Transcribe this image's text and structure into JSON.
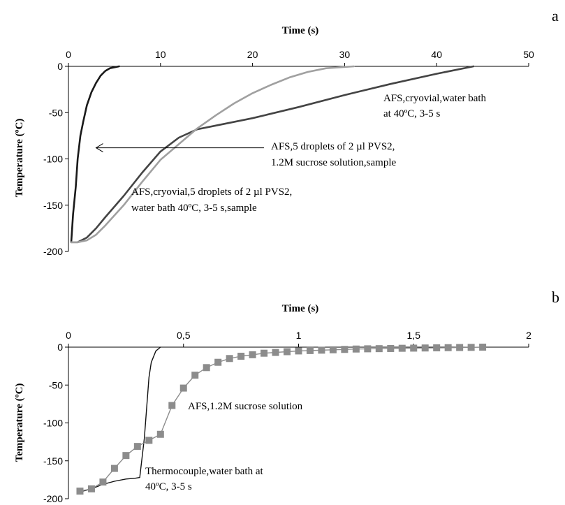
{
  "chart_data": [
    {
      "panel": "a",
      "type": "line",
      "xlabel": "Time (s)",
      "ylabel": "Temperature  (ºC)",
      "xlim": [
        0,
        50
      ],
      "ylim": [
        -200,
        0
      ],
      "x_ticks": [
        0,
        10,
        20,
        30,
        40,
        50
      ],
      "x_tick_labels": [
        "0",
        "10",
        "20",
        "30",
        "40",
        "50"
      ],
      "y_ticks": [
        0,
        -50,
        -100,
        -150,
        -200
      ],
      "y_tick_labels": [
        "0",
        "-50",
        "-100",
        "-150",
        "-200"
      ],
      "x_axis_position": "top",
      "grid": false,
      "series": [
        {
          "color": "#1a1a1a",
          "x": [
            0.3,
            0.5,
            0.8,
            1.0,
            1.3,
            1.6,
            2.0,
            2.5,
            3.0,
            3.5,
            4.0,
            4.5,
            5.0,
            5.5
          ],
          "y": [
            -190,
            -160,
            -130,
            -100,
            -75,
            -60,
            -42,
            -28,
            -18,
            -10,
            -5,
            -2,
            -1,
            0
          ]
        },
        {
          "color": "#444444",
          "x": [
            0.3,
            1,
            2,
            3,
            4,
            6,
            8,
            10,
            12,
            14,
            16,
            20,
            25,
            30,
            35,
            40,
            44
          ],
          "y": [
            -190,
            -190,
            -185,
            -175,
            -163,
            -140,
            -115,
            -92,
            -77,
            -68,
            -64,
            -56,
            -44,
            -31,
            -19,
            -8,
            0
          ]
        },
        {
          "color": "#a0a0a0",
          "x": [
            0.3,
            1,
            2,
            3,
            4,
            6,
            8,
            10,
            12,
            14,
            16,
            18,
            20,
            22,
            24,
            26,
            28,
            31
          ],
          "y": [
            -190,
            -190,
            -188,
            -182,
            -172,
            -150,
            -125,
            -101,
            -84,
            -67,
            -53,
            -40,
            -29,
            -20,
            -12,
            -6,
            -2,
            0
          ]
        }
      ],
      "annotations": [
        {
          "lines": [
            "AFS,cryovial,water bath",
            "at 40ºC, 3-5 s"
          ]
        },
        {
          "lines": [
            "AFS,5 droplets of 2 µl PVS2,",
            "1.2M sucrose solution,sample"
          ]
        },
        {
          "lines": [
            "AFS,cryovial,5 droplets of 2 µl PVS2,",
            "water bath 40ºC, 3-5 s,sample"
          ]
        }
      ],
      "arrow": {
        "from": [
          22,
          -88
        ],
        "to": [
          3,
          -88
        ]
      }
    },
    {
      "panel": "b",
      "type": "line",
      "xlabel": "Time (s)",
      "ylabel": "Temperature  (ºC)",
      "xlim": [
        0,
        2
      ],
      "ylim": [
        -200,
        0
      ],
      "x_ticks": [
        0,
        0.5,
        1,
        1.5,
        2
      ],
      "x_tick_labels": [
        "0",
        "0,5",
        "1",
        "1,5",
        "2"
      ],
      "y_ticks": [
        0,
        -50,
        -100,
        -150,
        -200
      ],
      "y_tick_labels": [
        "0",
        "-50",
        "-100",
        "-150",
        "-200"
      ],
      "x_axis_position": "top",
      "grid": false,
      "series": [
        {
          "color": "#111111",
          "marker": "none",
          "x": [
            0.05,
            0.1,
            0.15,
            0.2,
            0.25,
            0.29,
            0.31,
            0.33,
            0.34,
            0.35,
            0.36,
            0.38,
            0.4
          ],
          "y": [
            -191,
            -187,
            -181,
            -177,
            -174,
            -173,
            -172,
            -120,
            -80,
            -40,
            -20,
            -5,
            0
          ]
        },
        {
          "color": "#8c8c8c",
          "marker": "square",
          "x": [
            0.05,
            0.1,
            0.15,
            0.2,
            0.25,
            0.3,
            0.35,
            0.4,
            0.45,
            0.5,
            0.55,
            0.6,
            0.65,
            0.7,
            0.75,
            0.8,
            0.85,
            0.9,
            0.95,
            1.0,
            1.05,
            1.1,
            1.15,
            1.2,
            1.25,
            1.3,
            1.35,
            1.4,
            1.45,
            1.5,
            1.55,
            1.6,
            1.65,
            1.7,
            1.75,
            1.8
          ],
          "y": [
            -190,
            -187,
            -178,
            -160,
            -143,
            -131,
            -123,
            -115,
            -77,
            -54,
            -37,
            -27,
            -20,
            -15,
            -12,
            -10,
            -8,
            -7,
            -6,
            -5,
            -4.5,
            -4,
            -3.5,
            -3,
            -2.5,
            -2.2,
            -2,
            -1.8,
            -1.5,
            -1.3,
            -1.1,
            -0.9,
            -0.7,
            -0.5,
            -0.3,
            0
          ]
        }
      ],
      "annotations": [
        {
          "lines": [
            "AFS,1.2M sucrose solution"
          ]
        },
        {
          "lines": [
            "Thermocouple,water bath at",
            "40ºC, 3-5 s"
          ]
        }
      ]
    }
  ],
  "labels": {
    "a_letter": "a",
    "b_letter": "b",
    "a_xlabel": "Time (s)",
    "a_ylabel": "Temperature  (ºC)",
    "b_xlabel": "Time (s)",
    "b_ylabel": "Temperature  (ºC)",
    "a_annot_1_l1": "AFS,cryovial,water bath",
    "a_annot_1_l2": "at 40ºC, 3-5 s",
    "a_annot_2_l1": "AFS,5 droplets of 2 µl PVS2,",
    "a_annot_2_l2": "1.2M sucrose solution,sample",
    "a_annot_3_l1": "AFS,cryovial,5 droplets of 2 µl PVS2,",
    "a_annot_3_l2": "water bath 40ºC, 3-5 s,sample",
    "b_annot_1_l1": "AFS,1.2M sucrose solution",
    "b_annot_2_l1": "Thermocouple,water bath at",
    "b_annot_2_l2": "40ºC, 3-5 s"
  }
}
